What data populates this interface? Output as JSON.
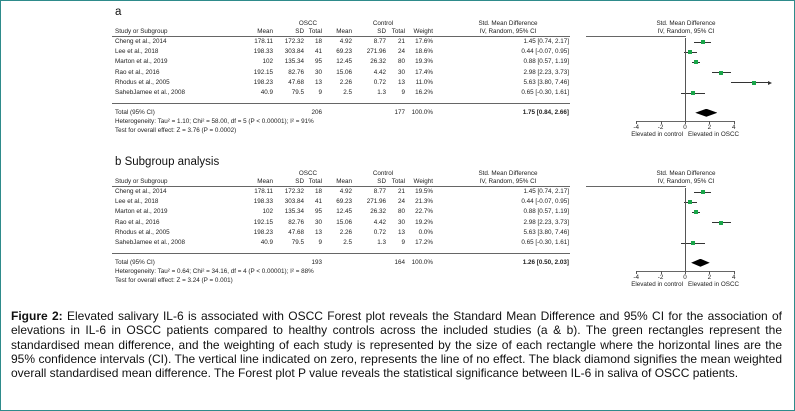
{
  "columns": {
    "study": "Study or Subgroup",
    "oscc": "OSCC",
    "control": "Control",
    "smd": "Std. Mean Difference",
    "smd_plot": "Std. Mean Difference",
    "mean": "Mean",
    "sd": "SD",
    "total": "Total",
    "weight": "Weight",
    "method": "IV, Random, 95% CI"
  },
  "axis": {
    "ticks": [
      "-4",
      "-2",
      "0",
      "2",
      "4"
    ],
    "tick_values": [
      -4,
      -2,
      0,
      2,
      4
    ],
    "left_label": "Elevated in control",
    "right_label": "Elevated in OSCC",
    "xlim": [
      -4,
      8
    ]
  },
  "panels": [
    {
      "label": "a",
      "studies": [
        {
          "study": "Cheng et al., 2014",
          "oscc_mean": "178.11",
          "oscc_sd": "172.32",
          "oscc_total": "18",
          "ctrl_mean": "4.92",
          "ctrl_sd": "8.77",
          "ctrl_total": "21",
          "weight": "17.6%",
          "ci_text": "1.45 [0.74, 2.17]",
          "est": 1.45,
          "lo": 0.74,
          "hi": 2.17
        },
        {
          "study": "Lee et al., 2018",
          "oscc_mean": "198.33",
          "oscc_sd": "303.84",
          "oscc_total": "41",
          "ctrl_mean": "69.23",
          "ctrl_sd": "271.96",
          "ctrl_total": "24",
          "weight": "18.6%",
          "ci_text": "0.44 [-0.07, 0.95]",
          "est": 0.44,
          "lo": -0.07,
          "hi": 0.95
        },
        {
          "study": "Marton et al., 2019",
          "oscc_mean": "102",
          "oscc_sd": "135.34",
          "oscc_total": "95",
          "ctrl_mean": "12.45",
          "ctrl_sd": "26.32",
          "ctrl_total": "80",
          "weight": "19.3%",
          "ci_text": "0.88 [0.57, 1.19]",
          "est": 0.88,
          "lo": 0.57,
          "hi": 1.19
        },
        {
          "study": "Rao et al., 2016",
          "oscc_mean": "192.15",
          "oscc_sd": "82.76",
          "oscc_total": "30",
          "ctrl_mean": "15.06",
          "ctrl_sd": "4.42",
          "ctrl_total": "30",
          "weight": "17.4%",
          "ci_text": "2.98 [2.23, 3.73]",
          "est": 2.98,
          "lo": 2.23,
          "hi": 3.73
        },
        {
          "study": "Rhodus et al., 2005",
          "oscc_mean": "198.23",
          "oscc_sd": "47.68",
          "oscc_total": "13",
          "ctrl_mean": "2.26",
          "ctrl_sd": "0.72",
          "ctrl_total": "13",
          "weight": "11.0%",
          "ci_text": "5.63 [3.80, 7.46]",
          "est": 5.63,
          "lo": 3.8,
          "hi": 7.46
        },
        {
          "study": "SahebJamee et al., 2008",
          "oscc_mean": "40.9",
          "oscc_sd": "79.5",
          "oscc_total": "9",
          "ctrl_mean": "2.5",
          "ctrl_sd": "1.3",
          "ctrl_total": "9",
          "weight": "16.2%",
          "ci_text": "0.65 [-0.30, 1.61]",
          "est": 0.65,
          "lo": -0.3,
          "hi": 1.61
        }
      ],
      "total": {
        "label": "Total (95% CI)",
        "oscc_total": "206",
        "ctrl_total": "177",
        "weight": "100.0%",
        "ci_text": "1.75 [0.84, 2.66]",
        "est": 1.75,
        "lo": 0.84,
        "hi": 2.66
      },
      "heterogeneity": "Heterogeneity: Tau² = 1.10; Chi² = 58.00, df = 5 (P < 0.00001); I² = 91%",
      "overall": "Test for overall effect: Z = 3.76 (P = 0.0002)"
    },
    {
      "label": "b Subgroup analysis",
      "studies": [
        {
          "study": "Cheng et al., 2014",
          "oscc_mean": "178.11",
          "oscc_sd": "172.32",
          "oscc_total": "18",
          "ctrl_mean": "4.92",
          "ctrl_sd": "8.77",
          "ctrl_total": "21",
          "weight": "19.5%",
          "ci_text": "1.45 [0.74, 2.17]",
          "est": 1.45,
          "lo": 0.74,
          "hi": 2.17
        },
        {
          "study": "Lee et al., 2018",
          "oscc_mean": "198.33",
          "oscc_sd": "303.84",
          "oscc_total": "41",
          "ctrl_mean": "69.23",
          "ctrl_sd": "271.96",
          "ctrl_total": "24",
          "weight": "21.3%",
          "ci_text": "0.44 [-0.07, 0.95]",
          "est": 0.44,
          "lo": -0.07,
          "hi": 0.95
        },
        {
          "study": "Marton et al., 2019",
          "oscc_mean": "102",
          "oscc_sd": "135.34",
          "oscc_total": "95",
          "ctrl_mean": "12.45",
          "ctrl_sd": "26.32",
          "ctrl_total": "80",
          "weight": "22.7%",
          "ci_text": "0.88 [0.57, 1.19]",
          "est": 0.88,
          "lo": 0.57,
          "hi": 1.19
        },
        {
          "study": "Rao et al., 2016",
          "oscc_mean": "192.15",
          "oscc_sd": "82.76",
          "oscc_total": "30",
          "ctrl_mean": "15.06",
          "ctrl_sd": "4.42",
          "ctrl_total": "30",
          "weight": "19.2%",
          "ci_text": "2.98 [2.23, 3.73]",
          "est": 2.98,
          "lo": 2.23,
          "hi": 3.73
        },
        {
          "study": "Rhodus et al., 2005",
          "oscc_mean": "198.23",
          "oscc_sd": "47.68",
          "oscc_total": "13",
          "ctrl_mean": "2.26",
          "ctrl_sd": "0.72",
          "ctrl_total": "13",
          "weight": "0.0%",
          "ci_text": "5.63 [3.80, 7.46]",
          "est": null,
          "lo": null,
          "hi": null
        },
        {
          "study": "SahebJamee et al., 2008",
          "oscc_mean": "40.9",
          "oscc_sd": "79.5",
          "oscc_total": "9",
          "ctrl_mean": "2.5",
          "ctrl_sd": "1.3",
          "ctrl_total": "9",
          "weight": "17.2%",
          "ci_text": "0.65 [-0.30, 1.61]",
          "est": 0.65,
          "lo": -0.3,
          "hi": 1.61
        }
      ],
      "total": {
        "label": "Total (95% CI)",
        "oscc_total": "193",
        "ctrl_total": "164",
        "weight": "100.0%",
        "ci_text": "1.26 [0.50, 2.03]",
        "est": 1.26,
        "lo": 0.5,
        "hi": 2.03
      },
      "heterogeneity": "Heterogeneity: Tau² = 0.64; Chi² = 34.16, df = 4 (P < 0.00001); I² = 88%",
      "overall": "Test for overall effect: Z = 3.24 (P = 0.001)"
    }
  ],
  "colors": {
    "study_box": "#1aa64a",
    "diamond": "#000000",
    "frame": "#2e8b8b"
  },
  "caption": {
    "prefix": "Figure 2:",
    "text": " Elevated salivary IL-6 is associated with OSCC Forest plot reveals the Standard Mean Difference and 95% CI for the association of elevations in IL-6 in OSCC patients compared to healthy controls across the included studies (a & b). The green rectangles represent the standardised mean difference, and the weighting of each study is represented by the size of each rectangle where the horizontal lines are the 95% confidence intervals (CI). The vertical line indicated on zero, represents the line of no effect. The black diamond signifies the mean weighted overall standardised mean difference. The Forest plot P value reveals the statistical significance between IL-6 in saliva of OSCC patients."
  }
}
